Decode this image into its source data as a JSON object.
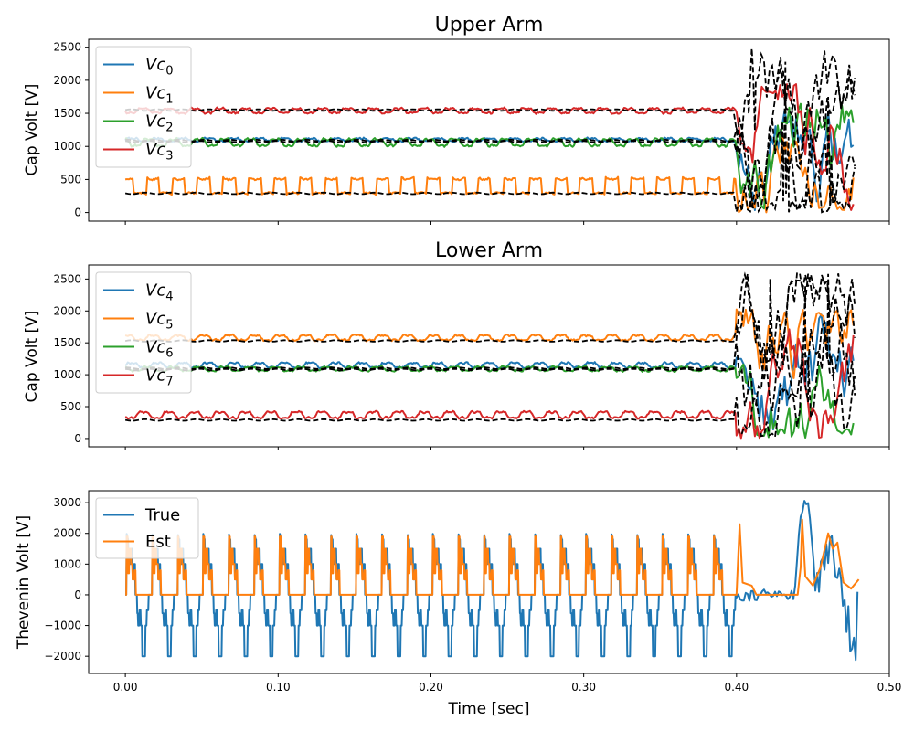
{
  "figure": {
    "xlabel": "Time [sec]"
  },
  "chart_data": [
    {
      "type": "line",
      "title": "Upper Arm",
      "xlabel": "",
      "ylabel": "Cap Volt [V]",
      "xlim": [
        -0.024,
        0.5
      ],
      "ylim": [
        -130,
        2620
      ],
      "xticks": [
        0.0,
        0.1,
        0.2,
        0.3,
        0.4,
        0.5
      ],
      "xtick_labels_visible": false,
      "yticks": [
        0,
        500,
        1000,
        1500,
        2000,
        2500
      ],
      "ytick_labels": [
        "0",
        "500",
        "1000",
        "1500",
        "2000",
        "2500"
      ],
      "legend_position": "upper-left",
      "grid": false,
      "series": [
        {
          "name": "Vc0",
          "label_base": "Vc",
          "label_sub": "0",
          "color": "#1f77b4",
          "style": "solid",
          "stable": {
            "kind": "wave",
            "mean": 1100,
            "amp": 25,
            "period": 0.0167
          }
        },
        {
          "name": "Vc1",
          "label_base": "Vc",
          "label_sub": "1",
          "color": "#ff7f0e",
          "style": "solid",
          "stable": {
            "kind": "square",
            "low": 280,
            "high": 530,
            "period": 0.0167
          }
        },
        {
          "name": "Vc2",
          "label_base": "Vc",
          "label_sub": "2",
          "color": "#2ca02c",
          "style": "solid",
          "stable": {
            "kind": "wave",
            "mean": 1060,
            "amp": 60,
            "period": 0.0167
          }
        },
        {
          "name": "Vc3",
          "label_base": "Vc",
          "label_sub": "3",
          "color": "#d62728",
          "style": "solid",
          "stable": {
            "kind": "wave",
            "mean": 1540,
            "amp": 40,
            "period": 0.0167
          }
        }
      ],
      "reference_lines": [
        {
          "color": "#000000",
          "style": "dashed",
          "stable_value": 1550
        },
        {
          "color": "#000000",
          "style": "dashed",
          "stable_value": 1090
        },
        {
          "color": "#000000",
          "style": "dashed",
          "stable_value": 1070
        },
        {
          "color": "#000000",
          "style": "dashed",
          "stable_value": 290
        }
      ],
      "stable_until": 0.4,
      "end": 0.478,
      "estimated_tail": {
        "reference_peaks": [
          [
            0.41,
            2480
          ],
          [
            0.432,
            2280
          ],
          [
            0.46,
            1750
          ]
        ],
        "note_range": [
          0,
          2500
        ]
      }
    },
    {
      "type": "line",
      "title": "Lower Arm",
      "xlabel": "",
      "ylabel": "Cap Volt [V]",
      "xlim": [
        -0.024,
        0.5
      ],
      "ylim": [
        -130,
        2720
      ],
      "xticks": [
        0.0,
        0.1,
        0.2,
        0.3,
        0.4,
        0.5
      ],
      "xtick_labels_visible": false,
      "yticks": [
        0,
        500,
        1000,
        1500,
        2000,
        2500
      ],
      "ytick_labels": [
        "0",
        "500",
        "1000",
        "1500",
        "2000",
        "2500"
      ],
      "legend_position": "upper-left",
      "grid": false,
      "series": [
        {
          "name": "Vc4",
          "label_base": "Vc",
          "label_sub": "4",
          "color": "#1f77b4",
          "style": "solid",
          "stable": {
            "kind": "wave",
            "mean": 1150,
            "amp": 40,
            "period": 0.0167
          }
        },
        {
          "name": "Vc5",
          "label_base": "Vc",
          "label_sub": "5",
          "color": "#ff7f0e",
          "style": "solid",
          "stable": {
            "kind": "wave",
            "mean": 1580,
            "amp": 45,
            "period": 0.0167
          }
        },
        {
          "name": "Vc6",
          "label_base": "Vc",
          "label_sub": "6",
          "color": "#2ca02c",
          "style": "solid",
          "stable": {
            "kind": "wave",
            "mean": 1090,
            "amp": 35,
            "period": 0.0167
          }
        },
        {
          "name": "Vc7",
          "label_base": "Vc",
          "label_sub": "7",
          "color": "#d62728",
          "style": "solid",
          "stable": {
            "kind": "wave",
            "mean": 370,
            "amp": 55,
            "period": 0.0167
          }
        }
      ],
      "reference_lines": [
        {
          "color": "#000000",
          "style": "dashed",
          "stable_value": 1530
        },
        {
          "color": "#000000",
          "style": "dashed",
          "stable_value": 1100
        },
        {
          "color": "#000000",
          "style": "dashed",
          "stable_value": 1080
        },
        {
          "color": "#000000",
          "style": "dashed",
          "stable_value": 290
        }
      ],
      "stable_until": 0.4,
      "end": 0.478,
      "estimated_tail": {
        "reference_peaks": [
          [
            0.422,
            2500
          ],
          [
            0.46,
            2580
          ],
          [
            0.445,
            2400
          ]
        ],
        "note_range": [
          0,
          2600
        ]
      }
    },
    {
      "type": "line",
      "title": "",
      "xlabel": "Time [sec]",
      "ylabel": "Thevenin Volt [V]",
      "xlim": [
        -0.024,
        0.5
      ],
      "ylim": [
        -2560,
        3390
      ],
      "xticks": [
        0.0,
        0.1,
        0.2,
        0.3,
        0.4,
        0.5
      ],
      "xtick_labels": [
        "0.00",
        "0.10",
        "0.20",
        "0.30",
        "0.40",
        "0.50"
      ],
      "yticks": [
        -2000,
        -1000,
        0,
        1000,
        2000,
        3000
      ],
      "ytick_labels": [
        "−2000",
        "−1000",
        "0",
        "1000",
        "2000",
        "3000"
      ],
      "legend_position": "upper-left",
      "grid": false,
      "series": [
        {
          "name": "True",
          "color": "#1f77b4",
          "style": "solid",
          "stable": {
            "kind": "thevenin_true",
            "period": 0.0167,
            "high": 2000,
            "low": -2000
          }
        },
        {
          "name": "Est",
          "color": "#ff7f0e",
          "style": "solid",
          "stable": {
            "kind": "thevenin_est",
            "period": 0.0167,
            "high": 1900,
            "low": 0
          }
        }
      ],
      "stable_until": 0.4,
      "end": 0.48,
      "estimated_tail": {
        "true_peak": [
          0.445,
          3100
        ],
        "est_peaks": [
          [
            0.402,
            2300
          ],
          [
            0.443,
            2450
          ],
          [
            0.46,
            2000
          ]
        ]
      }
    }
  ]
}
